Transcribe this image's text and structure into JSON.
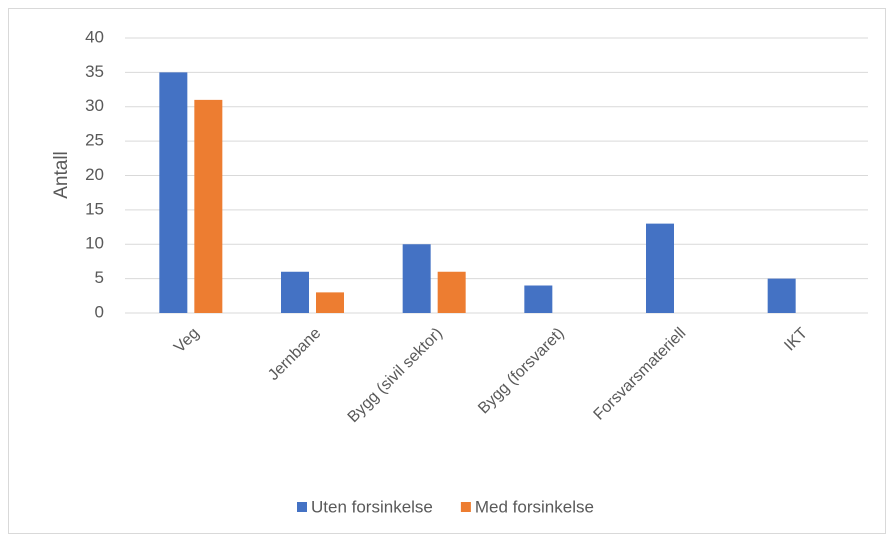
{
  "chart_data": {
    "type": "bar",
    "y_label": "Antall",
    "categories": [
      "Veg",
      "Jernbane",
      "Bygg (sivil sektor)",
      "Bygg (forsvaret)",
      "Forsvarsmateriell",
      "IKT"
    ],
    "series": [
      {
        "name": "Uten forsinkelse",
        "color": "#4472c4",
        "values": [
          35,
          6,
          10,
          4,
          13,
          5
        ]
      },
      {
        "name": "Med forsinkelse",
        "color": "#ed7d31",
        "values": [
          31,
          3,
          6,
          0,
          0,
          0
        ]
      }
    ],
    "ylim": [
      0,
      40
    ],
    "yticks": [
      0,
      5,
      10,
      15,
      20,
      25,
      30,
      35,
      40
    ],
    "grid": true,
    "legend": "bottom"
  }
}
